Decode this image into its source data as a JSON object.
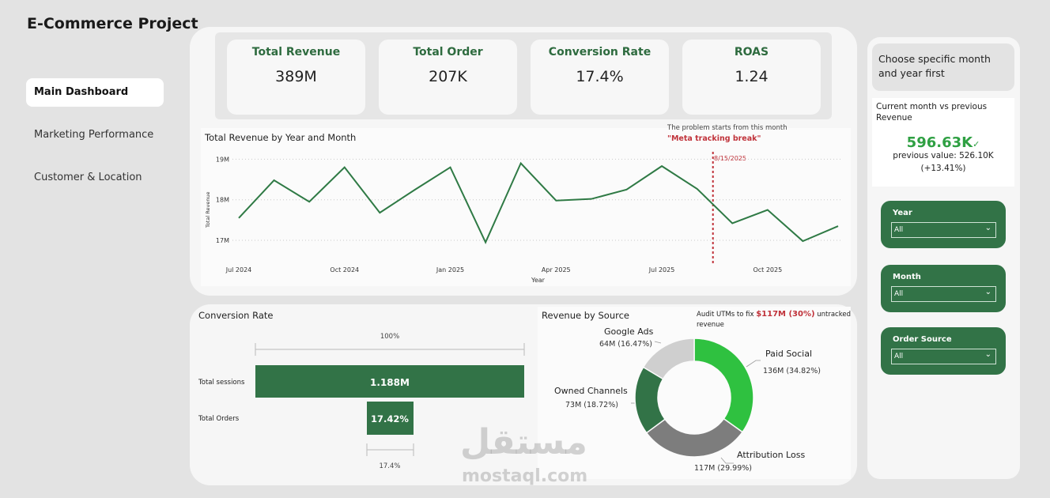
{
  "app": {
    "title": "E-Commerce Project"
  },
  "nav": {
    "items": [
      {
        "label": "Main Dashboard"
      },
      {
        "label": "Marketing Performance"
      },
      {
        "label": "Customer & Location"
      }
    ]
  },
  "kpis": [
    {
      "label": "Total Revenue",
      "value": "389M"
    },
    {
      "label": "Total Order",
      "value": "207K"
    },
    {
      "label": "Conversion Rate",
      "value": "17.4%"
    },
    {
      "label": "ROAS",
      "value": "1.24"
    }
  ],
  "revenue_chart": {
    "title": "Total Revenue by Year and Month",
    "note_line1": "The problem starts from this month",
    "note_line2": "\"Meta tracking break\"",
    "marker_label": "8/15/2025",
    "xlabel": "Year",
    "ylabel": "Total Revenue",
    "y_ticks": [
      "19M",
      "18M",
      "17M"
    ],
    "x_ticks": [
      "Jul 2024",
      "Oct 2024",
      "Jan 2025",
      "Apr 2025",
      "Jul 2025",
      "Oct 2025"
    ]
  },
  "conversion": {
    "title": "Conversion Rate",
    "top_label": "100%",
    "sessions_label": "Total sessions",
    "sessions_value": "1.188M",
    "orders_label": "Total Orders",
    "orders_value": "17.42%",
    "bottom_label": "17.4%"
  },
  "source_chart": {
    "title": "Revenue by Source",
    "audit_prefix": "Audit UTMs to fix ",
    "audit_highlight": "$117M (30%)",
    "audit_suffix": " untracked revenue",
    "slices": [
      {
        "name": "Paid Social",
        "value_text": "136M (34.82%)"
      },
      {
        "name": "Attribution Loss",
        "value_text": "117M (29.99%)"
      },
      {
        "name": "Owned Channels",
        "value_text": "73M (18.72%)"
      },
      {
        "name": "Google Ads",
        "value_text": "64M (16.47%)"
      }
    ]
  },
  "side": {
    "hint": "Choose specific month and year first",
    "compare_title": "Current month vs previous Revenue",
    "current_value": "596.63K",
    "previous_value": "previous value: 526.10K",
    "change": "(+13.41%)"
  },
  "filters": [
    {
      "label": "Year",
      "value": "All"
    },
    {
      "label": "Month",
      "value": "All"
    },
    {
      "label": "Order Source",
      "value": "All"
    }
  ],
  "watermark": {
    "arabic": "مستقل",
    "latin": "mostaql.com"
  },
  "colors": {
    "brand_green": "#327347",
    "bright_green": "#2fc140",
    "alert_red": "#c0323a",
    "line_green": "#2f7a45",
    "gray_dark": "#7d7d7d",
    "gray_light": "#cfcfcf"
  },
  "chart_data": [
    {
      "type": "line",
      "title": "Total Revenue by Year and Month",
      "xlabel": "Year",
      "ylabel": "Total Revenue",
      "x": [
        "2024-07",
        "2024-08",
        "2024-09",
        "2024-10",
        "2024-11",
        "2024-12",
        "2025-01",
        "2025-02",
        "2025-03",
        "2025-04",
        "2025-05",
        "2025-06",
        "2025-07",
        "2025-08",
        "2025-09",
        "2025-10",
        "2025-11",
        "2025-12"
      ],
      "series": [
        {
          "values": [
            17.55,
            18.48,
            17.95,
            18.8,
            17.68,
            18.25,
            18.8,
            16.95,
            18.9,
            17.98,
            18.02,
            18.25,
            18.83,
            18.27,
            17.42,
            17.75,
            16.98,
            17.35
          ]
        }
      ],
      "ylim": [
        16.8,
        19.0
      ],
      "annotation": {
        "x": "2025-08-15",
        "label": "8/15/2025"
      },
      "grid": true
    },
    {
      "type": "bar",
      "title": "Conversion Rate",
      "categories": [
        "Total sessions",
        "Total Orders"
      ],
      "values": [
        100,
        17.42
      ]
    },
    {
      "type": "pie",
      "title": "Revenue by Source",
      "categories": [
        "Paid Social",
        "Attribution Loss",
        "Owned Channels",
        "Google Ads"
      ],
      "values": [
        136,
        117,
        73,
        64
      ],
      "percent": [
        34.82,
        29.99,
        18.72,
        16.47
      ]
    }
  ]
}
